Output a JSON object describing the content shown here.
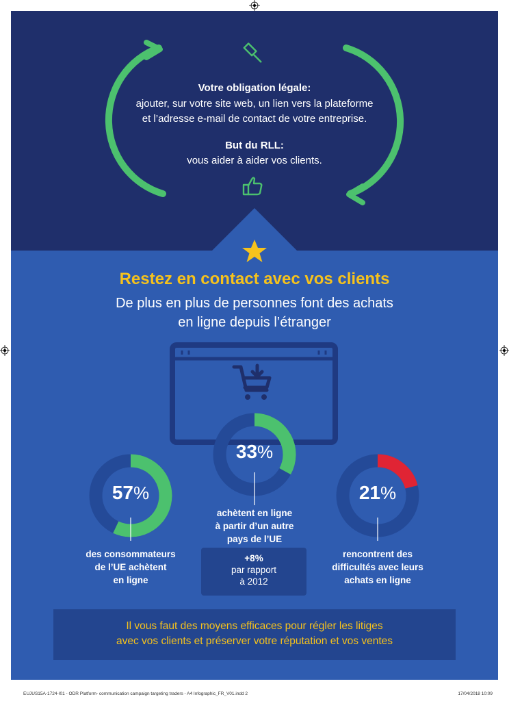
{
  "colors": {
    "dark_navy": "#1f2f6b",
    "medium_blue": "#2f5cb0",
    "ring_track": "#244a98",
    "green": "#4cc16e",
    "red": "#e02434",
    "yellow": "#f6c21c",
    "white": "#ffffff"
  },
  "top": {
    "obligation_title": "Votre obligation légale:",
    "obligation_line1": "ajouter, sur votre site web, un lien vers la plateforme",
    "obligation_line2": "et l’adresse e-mail de contact de votre entreprise.",
    "goal_title": "But du RLL:",
    "goal_text": "vous aider à aider vos clients.",
    "icons": [
      "gavel-icon",
      "thumbs-up-icon",
      "cycle-arrows-icon"
    ]
  },
  "section": {
    "heading": "Restez en contact avec vos clients",
    "sub1": "De plus en plus de personnes font des achats",
    "sub2": "en ligne depuis l’étranger",
    "icons": [
      "star-icon",
      "browser-window-icon",
      "shopping-cart-icon"
    ]
  },
  "chart_data": {
    "type": "pie",
    "unit": "%",
    "items": [
      {
        "value": 57,
        "number": "57",
        "color": "#4cc16e",
        "label": [
          "des consommateurs",
          "de l’UE achètent",
          "en ligne"
        ]
      },
      {
        "value": 33,
        "number": "33",
        "color": "#4cc16e",
        "label": [
          "achètent en ligne",
          "à partir d’un autre",
          "pays de l’UE"
        ]
      },
      {
        "value": 21,
        "number": "21",
        "color": "#e02434",
        "label": [
          "rencontrent des",
          "difficultés avec leurs",
          "achats en ligne"
        ]
      }
    ],
    "callout": {
      "value": "+8%",
      "line1": "par rapport",
      "line2": "à 2012"
    }
  },
  "banner": {
    "line1": "Il vous faut des moyens efficaces pour régler les litiges",
    "line2": "avec vos clients et préserver votre réputation et vos ventes"
  },
  "footer": {
    "file": "EUJUS15A-1724-I01 - ODR Platform- communication campaign targeting traders - A4 Infographic_FR_V01.indd   2",
    "date": "17/04/2018   10:09"
  }
}
